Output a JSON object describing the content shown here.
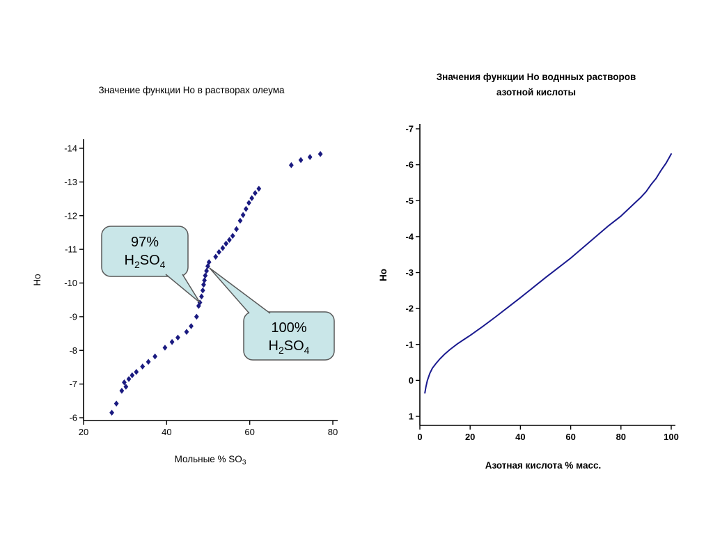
{
  "slide": {
    "background": "#ffffff"
  },
  "titles": {
    "oleum": "Значение функции Но в растворах олеума",
    "nitric": "Значения функции Но воднных растворов азотной кислоты"
  },
  "chart_data": [
    {
      "id": "oleum",
      "type": "scatter",
      "title": "Значение функции Но в растворах олеума",
      "ylabel": "Но",
      "xlabel_segments": [
        {
          "t": "Мольные % SO"
        },
        {
          "t": "3",
          "sub": true
        }
      ],
      "marker_shape": "diamond",
      "marker_color": "#1a1a80",
      "x_ticks": [
        20,
        40,
        60,
        80
      ],
      "y_ticks": [
        -14,
        -13,
        -12,
        -11,
        -10,
        -9,
        -8,
        -7,
        -6
      ],
      "xlim": [
        20,
        81
      ],
      "ylim_top": -14.3,
      "ylim_bottom": -6,
      "y_inverted": true,
      "grid": false,
      "points": [
        [
          26.8,
          -6.15
        ],
        [
          27.9,
          -6.42
        ],
        [
          29.2,
          -6.8
        ],
        [
          29.8,
          -7.05
        ],
        [
          30.2,
          -6.92
        ],
        [
          30.9,
          -7.15
        ],
        [
          31.7,
          -7.26
        ],
        [
          32.7,
          -7.36
        ],
        [
          34.2,
          -7.52
        ],
        [
          35.6,
          -7.66
        ],
        [
          37.2,
          -7.82
        ],
        [
          39.6,
          -8.08
        ],
        [
          41.3,
          -8.25
        ],
        [
          42.7,
          -8.38
        ],
        [
          44.8,
          -8.55
        ],
        [
          45.9,
          -8.72
        ],
        [
          47.2,
          -9.0
        ],
        [
          47.7,
          -9.32
        ],
        [
          48.0,
          -9.42
        ],
        [
          48.4,
          -9.6
        ],
        [
          48.7,
          -9.78
        ],
        [
          48.9,
          -9.95
        ],
        [
          49.1,
          -10.08
        ],
        [
          49.3,
          -10.22
        ],
        [
          49.6,
          -10.36
        ],
        [
          49.9,
          -10.5
        ],
        [
          50.2,
          -10.62
        ],
        [
          51.8,
          -10.78
        ],
        [
          52.6,
          -10.92
        ],
        [
          53.5,
          -11.04
        ],
        [
          54.3,
          -11.17
        ],
        [
          55.1,
          -11.28
        ],
        [
          55.9,
          -11.4
        ],
        [
          56.8,
          -11.6
        ],
        [
          57.7,
          -11.85
        ],
        [
          58.4,
          -12.02
        ],
        [
          59.1,
          -12.2
        ],
        [
          59.8,
          -12.38
        ],
        [
          60.5,
          -12.52
        ],
        [
          61.3,
          -12.67
        ],
        [
          62.2,
          -12.8
        ],
        [
          70.0,
          -13.5
        ],
        [
          72.3,
          -13.65
        ],
        [
          74.5,
          -13.74
        ],
        [
          77.0,
          -13.83
        ]
      ],
      "annotations": [
        {
          "name": "callout-97-h2so4",
          "fill": "#c9e6e8",
          "border": "#595959",
          "lines": [
            [
              {
                "t": "97%"
              }
            ],
            [
              {
                "t": "H"
              },
              {
                "t": "2",
                "sub": true
              },
              {
                "t": "SO"
              },
              {
                "t": "4",
                "sub": true
              }
            ]
          ],
          "tip": [
            48.0,
            -9.42
          ]
        },
        {
          "name": "callout-100-h2so4",
          "fill": "#c9e6e8",
          "border": "#595959",
          "lines": [
            [
              {
                "t": "100%"
              }
            ],
            [
              {
                "t": "H"
              },
              {
                "t": "2",
                "sub": true
              },
              {
                "t": "SO"
              },
              {
                "t": "4",
                "sub": true
              }
            ]
          ],
          "tip": [
            50.3,
            -10.45
          ]
        }
      ]
    },
    {
      "id": "nitric",
      "type": "line",
      "title": "Значения функции Но воднных растворов азотной кислоты",
      "ylabel": "Но",
      "xlabel": "Азотная кислота % масс.",
      "line_color": "#1a1a8f",
      "x_ticks": [
        0,
        20,
        40,
        60,
        80,
        100
      ],
      "y_ticks": [
        -7,
        -6,
        -5,
        -4,
        -3,
        -2,
        -1,
        0,
        1
      ],
      "xlim": [
        0,
        101
      ],
      "ylim_top": -7.3,
      "ylim_bottom": 1,
      "y_inverted": true,
      "grid": false,
      "points": [
        [
          2,
          0.35
        ],
        [
          2.4,
          0.18
        ],
        [
          3,
          0.0
        ],
        [
          4,
          -0.2
        ],
        [
          5,
          -0.34
        ],
        [
          6.5,
          -0.48
        ],
        [
          8,
          -0.6
        ],
        [
          10,
          -0.74
        ],
        [
          12,
          -0.86
        ],
        [
          15,
          -1.02
        ],
        [
          18,
          -1.16
        ],
        [
          20,
          -1.25
        ],
        [
          25,
          -1.5
        ],
        [
          30,
          -1.76
        ],
        [
          35,
          -2.03
        ],
        [
          40,
          -2.3
        ],
        [
          45,
          -2.58
        ],
        [
          50,
          -2.86
        ],
        [
          55,
          -3.13
        ],
        [
          60,
          -3.4
        ],
        [
          65,
          -3.7
        ],
        [
          70,
          -4.0
        ],
        [
          75,
          -4.3
        ],
        [
          80,
          -4.57
        ],
        [
          85,
          -4.9
        ],
        [
          88,
          -5.1
        ],
        [
          90,
          -5.25
        ],
        [
          92,
          -5.45
        ],
        [
          94,
          -5.62
        ],
        [
          96,
          -5.85
        ],
        [
          98,
          -6.05
        ],
        [
          100,
          -6.3
        ]
      ]
    }
  ]
}
